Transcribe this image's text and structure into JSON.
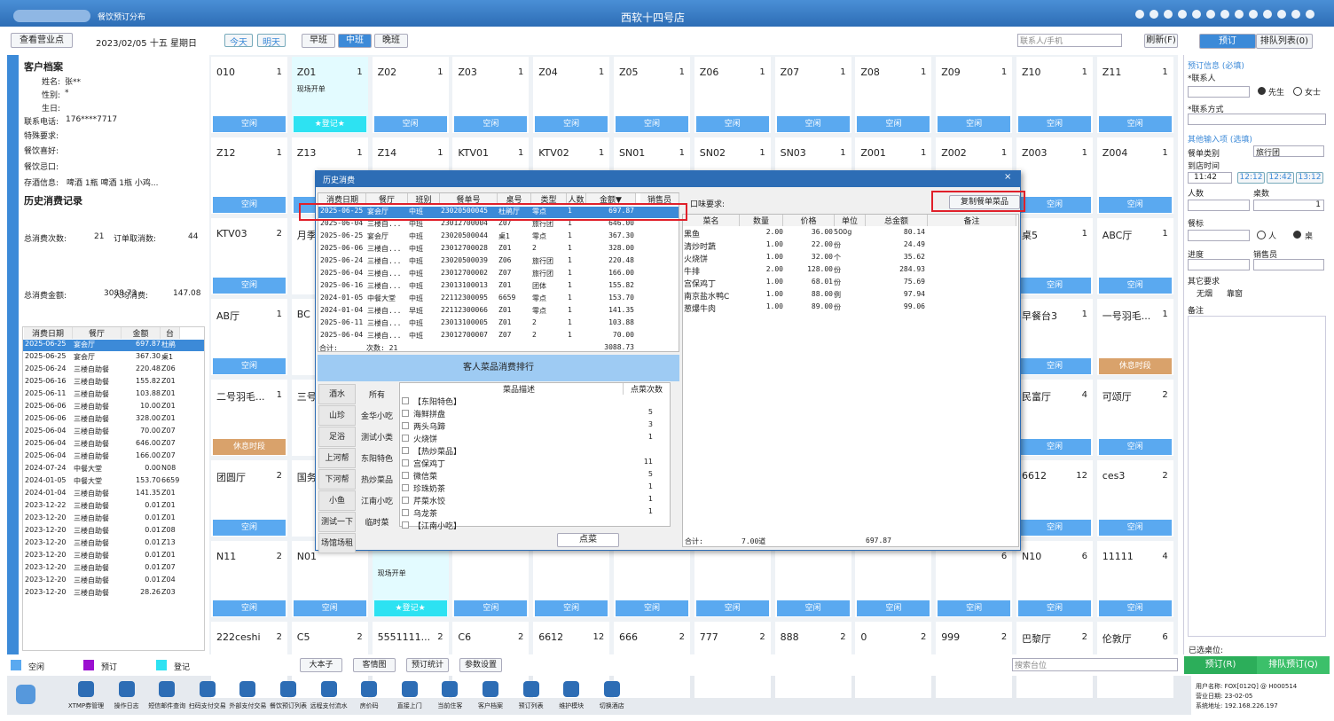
{
  "topbar": {
    "module": "餐饮预订分布",
    "hotel": "西软十四号店"
  },
  "toolbar": {
    "outlet": "查看营业点",
    "date": "2023/02/05 十五 星期日",
    "today": "今天",
    "tomorrow": "明天",
    "shifts": [
      "早班",
      "中班",
      "晚班"
    ],
    "search": "联系人/手机",
    "refresh": "刷新(F)",
    "tabs": [
      "预订",
      "排队列表(0)"
    ]
  },
  "profile": {
    "title": "客户档案",
    "fields": [
      {
        "label": "姓名:",
        "value": "张**"
      },
      {
        "label": "性别:",
        "value": "*"
      },
      {
        "label": "生日:"
      },
      {
        "label": "联系电话:",
        "value": "176****7717"
      },
      {
        "label": "特殊要求:"
      },
      {
        "label": "餐饮喜好:"
      },
      {
        "label": "餐饮忌口:"
      },
      {
        "label": "存酒信息:",
        "value": "啤酒 1瓶  啤酒 1瓶  小鸡..."
      }
    ],
    "history_title": "历史消费记录",
    "stats": [
      {
        "label": "总消费次数:",
        "value": "21"
      },
      {
        "label": "订单取消数:",
        "value": "44"
      },
      {
        "label": "总消费金额:",
        "value": "3088.73"
      },
      {
        "label": "人均消费:",
        "value": "147.08"
      }
    ],
    "table": {
      "headers": [
        "消费日期",
        "餐厅",
        "金额",
        "台"
      ],
      "rows": [
        [
          "2025-06-25",
          "宴会厅",
          "697.87",
          "杜鹃"
        ],
        [
          "2025-06-25",
          "宴会厅",
          "367.30",
          "桌1"
        ],
        [
          "2025-06-24",
          "三楼自助餐",
          "220.48",
          "Z06"
        ],
        [
          "2025-06-16",
          "三楼自助餐",
          "155.82",
          "Z01"
        ],
        [
          "2025-06-11",
          "三楼自助餐",
          "103.88",
          "Z01"
        ],
        [
          "2025-06-06",
          "三楼自助餐",
          "10.00",
          "Z01"
        ],
        [
          "2025-06-06",
          "三楼自助餐",
          "328.00",
          "Z01"
        ],
        [
          "2025-06-04",
          "三楼自助餐",
          "70.00",
          "Z07"
        ],
        [
          "2025-06-04",
          "三楼自助餐",
          "646.00",
          "Z07"
        ],
        [
          "2025-06-04",
          "三楼自助餐",
          "166.00",
          "Z07"
        ],
        [
          "2024-07-24",
          "中餐大堂",
          "0.00",
          "N08"
        ],
        [
          "2024-01-05",
          "中餐大堂",
          "153.70",
          "6659"
        ],
        [
          "2024-01-04",
          "三楼自助餐",
          "141.35",
          "Z01"
        ],
        [
          "2023-12-22",
          "三楼自助餐",
          "0.01",
          "Z01"
        ],
        [
          "2023-12-20",
          "三楼自助餐",
          "0.01",
          "Z01"
        ],
        [
          "2023-12-20",
          "三楼自助餐",
          "0.01",
          "Z08"
        ],
        [
          "2023-12-20",
          "三楼自助餐",
          "0.01",
          "Z13"
        ],
        [
          "2023-12-20",
          "三楼自助餐",
          "0.01",
          "Z01"
        ],
        [
          "2023-12-20",
          "三楼自助餐",
          "0.01",
          "Z07"
        ],
        [
          "2023-12-20",
          "三楼自助餐",
          "0.01",
          "Z04"
        ],
        [
          "2023-12-20",
          "三楼自助餐",
          "28.26",
          "Z03"
        ]
      ]
    }
  },
  "tables": [
    [
      {
        "name": "010",
        "seats": "1",
        "status": "空闲"
      },
      {
        "name": "Z01",
        "seats": "1",
        "status": "★登记★",
        "note": "现场开单"
      },
      {
        "name": "Z02",
        "seats": "1",
        "status": "空闲"
      },
      {
        "name": "Z03",
        "seats": "1",
        "status": "空闲"
      },
      {
        "name": "Z04",
        "seats": "1",
        "status": "空闲"
      },
      {
        "name": "Z05",
        "seats": "1",
        "status": "空闲"
      },
      {
        "name": "Z06",
        "seats": "1",
        "status": "空闲"
      },
      {
        "name": "Z07",
        "seats": "1",
        "status": "空闲"
      },
      {
        "name": "Z08",
        "seats": "1",
        "status": "空闲"
      },
      {
        "name": "Z09",
        "seats": "1",
        "status": "空闲"
      },
      {
        "name": "Z10",
        "seats": "1",
        "status": "空闲"
      },
      {
        "name": "Z11",
        "seats": "1",
        "status": "空闲"
      }
    ],
    [
      {
        "name": "Z12",
        "seats": "1",
        "status": "空闲"
      },
      {
        "name": "Z13",
        "seats": "1",
        "status": "空闲"
      },
      {
        "name": "Z14",
        "seats": "1"
      },
      {
        "name": "KTV01",
        "seats": "1"
      },
      {
        "name": "KTV02",
        "seats": "1"
      },
      {
        "name": "SN01",
        "seats": "1"
      },
      {
        "name": "SN02",
        "seats": "1"
      },
      {
        "name": "SN03",
        "seats": "1"
      },
      {
        "name": "Z001",
        "seats": "1"
      },
      {
        "name": "Z002",
        "seats": "1"
      },
      {
        "name": "Z003",
        "seats": "1",
        "status": "空闲"
      },
      {
        "name": "Z004",
        "seats": "1",
        "status": "空闲"
      }
    ],
    [
      {
        "name": "KTV03",
        "seats": "2",
        "status": "空闲"
      },
      {
        "name": "月季"
      },
      null,
      null,
      null,
      null,
      null,
      null,
      null,
      null,
      {
        "name": "桌5",
        "seats": "1",
        "status": "空闲"
      },
      {
        "name": "ABC厅",
        "seats": "1",
        "status": "空闲"
      }
    ],
    [
      {
        "name": "AB厅",
        "seats": "1",
        "status": "空闲"
      },
      {
        "name": "BC"
      },
      null,
      null,
      null,
      null,
      null,
      null,
      null,
      null,
      {
        "name": "早餐台3",
        "seats": "1",
        "status": "空闲"
      },
      {
        "name": "一号羽毛...",
        "seats": "1",
        "status": "休息时段"
      }
    ],
    [
      {
        "name": "二号羽毛...",
        "seats": "1",
        "status": "休息时段"
      },
      {
        "name": "三号"
      },
      null,
      null,
      null,
      null,
      null,
      null,
      null,
      null,
      {
        "name": "民富厅",
        "seats": "4",
        "status": "空闲"
      },
      {
        "name": "可颂厅",
        "seats": "2",
        "status": "空闲"
      }
    ],
    [
      {
        "name": "团圆厅",
        "seats": "2",
        "status": "空闲"
      },
      {
        "name": "国务"
      },
      null,
      null,
      null,
      null,
      null,
      null,
      null,
      null,
      {
        "name": "6612",
        "seats": "12",
        "status": "空闲"
      },
      {
        "name": "ces3",
        "seats": "2",
        "status": "空闲"
      }
    ],
    [
      {
        "name": "N11",
        "seats": "2",
        "status": "空闲"
      },
      {
        "name": "N01",
        "status": "空闲"
      },
      {
        "status": "★登记★",
        "note": "现场开单"
      },
      {
        "status": "空闲"
      },
      {
        "status": "空闲"
      },
      {
        "status": "空闲"
      },
      {
        "status": "空闲"
      },
      {
        "status": "空闲"
      },
      {
        "status": "空闲"
      },
      {
        "seats": "6",
        "status": "空闲"
      },
      {
        "name": "N10",
        "seats": "6",
        "status": "空闲"
      },
      {
        "name": "11111",
        "seats": "4",
        "status": "空闲"
      }
    ],
    [
      {
        "name": "222ceshi",
        "seats": "2"
      },
      {
        "name": "C5",
        "seats": "2"
      },
      {
        "name": "5551111...",
        "seats": "2"
      },
      {
        "name": "C6",
        "seats": "2"
      },
      {
        "name": "6612",
        "seats": "12"
      },
      {
        "name": "666",
        "seats": "2"
      },
      {
        "name": "777",
        "seats": "2"
      },
      {
        "name": "888",
        "seats": "2"
      },
      {
        "name": "0",
        "seats": "2"
      },
      {
        "name": "999",
        "seats": "2"
      },
      {
        "name": "巴黎厅",
        "seats": "2"
      },
      {
        "name": "伦敦厅",
        "seats": "6"
      }
    ]
  ],
  "dialog": {
    "title": "历史消费",
    "orders": {
      "headers": [
        "消费日期",
        "餐厅",
        "班别",
        "餐单号",
        "桌号",
        "类型",
        "人数",
        "金额▼",
        "销售员"
      ],
      "rows": [
        [
          "2025-06-25",
          "宴会厅",
          "中班",
          "23020500045",
          "杜鹃厅",
          "零点",
          "1",
          "697.87"
        ],
        [
          "2025-06-04",
          "三楼自...",
          "中班",
          "23012700004",
          "Z07",
          "旅行团",
          "1",
          "646.00"
        ],
        [
          "2025-06-25",
          "宴会厅",
          "中班",
          "23020500044",
          "桌1",
          "零点",
          "1",
          "367.30"
        ],
        [
          "2025-06-06",
          "三楼自...",
          "中班",
          "23012700028",
          "Z01",
          "2",
          "1",
          "328.00"
        ],
        [
          "2025-06-24",
          "三楼自...",
          "中班",
          "23020500039",
          "Z06",
          "旅行团",
          "1",
          "220.48"
        ],
        [
          "2025-06-04",
          "三楼自...",
          "中班",
          "23012700002",
          "Z07",
          "旅行团",
          "1",
          "166.00"
        ],
        [
          "2025-06-16",
          "三楼自...",
          "中班",
          "23013100013",
          "Z01",
          "团体",
          "1",
          "155.82"
        ],
        [
          "2024-01-05",
          "中餐大堂",
          "中班",
          "22112300095",
          "6659",
          "零点",
          "1",
          "153.70"
        ],
        [
          "2024-01-04",
          "三楼自...",
          "早班",
          "22112300066",
          "Z01",
          "零点",
          "1",
          "141.35"
        ],
        [
          "2025-06-11",
          "三楼自...",
          "中班",
          "23013100005",
          "Z01",
          "2",
          "1",
          "103.88"
        ],
        [
          "2025-06-04",
          "三楼自...",
          "中班",
          "23012700007",
          "Z07",
          "2",
          "1",
          "70.00"
        ]
      ],
      "total_label": "合计:",
      "count_label": "次数: 21",
      "total": "3088.73"
    },
    "ranking": {
      "title": "客人菜品消费排行",
      "categories": [
        "酒水",
        "山珍",
        "足浴",
        "上河帮",
        "下河帮",
        "小鱼",
        "测试一下",
        "场馆场租"
      ],
      "subcategories": [
        "所有",
        "金华小吃",
        "测试小类",
        "东阳特色",
        "热炒菜品",
        "江南小吃",
        "临时菜"
      ],
      "headers": [
        "菜品描述",
        "点菜次数"
      ],
      "rows": [
        [
          "【东阳特色】"
        ],
        [
          "海鲜拼盘",
          "5"
        ],
        [
          "两头乌蹄",
          "3"
        ],
        [
          "火烧饼",
          "1"
        ],
        [
          "【热炒菜品】"
        ],
        [
          "宫保鸡丁",
          "11"
        ],
        [
          "微信菜",
          "5"
        ],
        [
          "珍珠奶茶",
          "1"
        ],
        [
          "芹菜水饺",
          "1"
        ],
        [
          "乌龙茶",
          "1"
        ],
        [
          "【江南小吃】"
        ]
      ],
      "button": "点菜"
    },
    "taste": "口味要求:",
    "copy": "复制餐单菜品",
    "items": {
      "headers": [
        "菜名",
        "数量",
        "价格",
        "单位",
        "总金额",
        "备注"
      ],
      "rows": [
        [
          "黑鱼",
          "2.00",
          "36.00",
          "500g",
          "80.14"
        ],
        [
          "清炒时蔬",
          "1.00",
          "22.00",
          "份",
          "24.49"
        ],
        [
          "火烧饼",
          "1.00",
          "32.00",
          "个",
          "35.62"
        ],
        [
          "牛排",
          "2.00",
          "128.00",
          "份",
          "284.93"
        ],
        [
          "宫保鸡丁",
          "1.00",
          "68.01",
          "份",
          "75.69"
        ],
        [
          "南京盐水鸭C",
          "1.00",
          "88.00",
          "例",
          "97.94"
        ],
        [
          "葱爆牛肉",
          "1.00",
          "89.00",
          "份",
          "99.06"
        ]
      ],
      "total_label": "合计:",
      "count": "7.00道",
      "total": "697.87"
    }
  },
  "form": {
    "required": "预订信息 (必填)",
    "contact": "*联系人",
    "mr": "先生",
    "ms": "女士",
    "phone": "*联系方式",
    "optional": "其他输入项 (选填)",
    "menu_type": "餐单类别",
    "menu_value": "旅行团",
    "arrival": "到店时间",
    "time": "11:42",
    "times": [
      "12:12",
      "12:42",
      "13:12"
    ],
    "guests": "人数",
    "tables": "桌数",
    "tables_value": "1",
    "standard": "餐标",
    "per_person": "人",
    "per_table": "桌",
    "progress": "进度",
    "sales": "销售员",
    "other": "其它要求",
    "no_smoke": "无烟",
    "window": "靠窗",
    "remark": "备注",
    "selected": "已选桌位:",
    "book": "预订(R)",
    "queue": "排队预订(Q)"
  },
  "legend": [
    {
      "label": "空闲",
      "color": "#5aa9f0"
    },
    {
      "label": "预订",
      "color": "#9b10d0"
    },
    {
      "label": "登记",
      "color": "#2de2f2"
    }
  ],
  "bottom_buttons": [
    "大本子",
    "客情图",
    "预订统计",
    "参数设置"
  ],
  "table_search": "搜索台位",
  "taskbar": [
    "XTMP券管理",
    "操作日志",
    "短信邮件查询",
    "扫码支付交易",
    "外部支付交易",
    "餐饮预订列表",
    "远程支付流水",
    "房价码",
    "直接上门",
    "当前住客",
    "客户档案",
    "预订列表",
    "维护模块",
    "切换酒店"
  ],
  "status": [
    "用户名称: FOX[012Q] @ H000514",
    "营业日期: 23-02-05",
    "系统地址: 192.168.226.197"
  ]
}
